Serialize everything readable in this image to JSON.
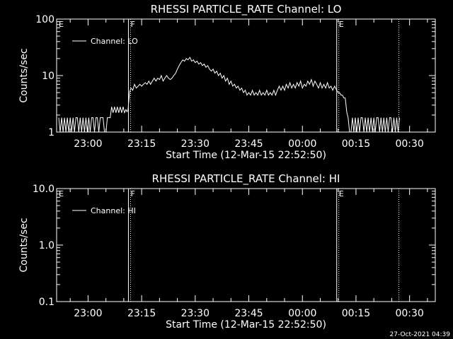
{
  "footer_date": "27-Oct-2021 04:39",
  "chart_data": [
    {
      "type": "line",
      "title": "RHESSI PARTICLE_RATE Channel: LO",
      "xlabel": "Start Time (12-Mar-15 22:52:50)",
      "ylabel": "Counts/sec",
      "yscale": "log",
      "ylim": [
        1,
        100
      ],
      "yticks": [
        1,
        10,
        100
      ],
      "ytick_labels": [
        "1",
        "10",
        "100"
      ],
      "xlim_minutes": [
        -8.8,
        97.2
      ],
      "xticks_minutes": [
        0,
        15,
        30,
        45,
        60,
        75,
        90
      ],
      "xtick_labels": [
        "23:00",
        "23:15",
        "23:30",
        "23:45",
        "00:00",
        "00:15",
        "00:30"
      ],
      "legend": "Channel: LO",
      "legend_position": "top-left",
      "markers": [
        {
          "label": "E",
          "minutes": -8.8,
          "style": "none"
        },
        {
          "label": "F",
          "minutes": 11.3,
          "style": "solid+dotted"
        },
        {
          "label": "E",
          "minutes": 69.6,
          "style": "solid+dotted"
        },
        {
          "label": "",
          "minutes": 87.0,
          "style": "dotted"
        }
      ],
      "series": [
        {
          "name": "Channel: LO",
          "points": [
            [
              -8.2,
              1.8
            ],
            [
              -7.8,
              1
            ],
            [
              -7.4,
              1.8
            ],
            [
              -7.0,
              1
            ],
            [
              -6.6,
              1.8
            ],
            [
              -6.2,
              1
            ],
            [
              -5.8,
              1.8
            ],
            [
              -5.4,
              1
            ],
            [
              -5.0,
              1.8
            ],
            [
              -4.6,
              1
            ],
            [
              -4.2,
              1.8
            ],
            [
              -3.8,
              1
            ],
            [
              -3.4,
              1.8
            ],
            [
              -3.0,
              1.8
            ],
            [
              -2.6,
              1
            ],
            [
              -2.2,
              1.8
            ],
            [
              -1.8,
              1
            ],
            [
              -1.4,
              1.8
            ],
            [
              -1.0,
              1
            ],
            [
              -0.6,
              1.8
            ],
            [
              -0.2,
              1
            ],
            [
              0.2,
              1.8
            ],
            [
              0.6,
              1
            ],
            [
              1.0,
              1.8
            ],
            [
              1.4,
              1.8
            ],
            [
              1.8,
              1
            ],
            [
              2.2,
              1.8
            ],
            [
              2.6,
              1.8
            ],
            [
              3.0,
              1
            ],
            [
              3.4,
              1.8
            ],
            [
              3.8,
              1.8
            ],
            [
              4.2,
              1.8
            ],
            [
              4.6,
              1
            ],
            [
              5.0,
              1
            ],
            [
              5.4,
              1.8
            ],
            [
              5.8,
              1.8
            ],
            [
              6.2,
              1.8
            ],
            [
              6.6,
              2.8
            ],
            [
              7.0,
              2.2
            ],
            [
              7.4,
              2.8
            ],
            [
              7.8,
              2.2
            ],
            [
              8.2,
              2.8
            ],
            [
              8.6,
              2.2
            ],
            [
              9.0,
              2.8
            ],
            [
              9.4,
              2.2
            ],
            [
              9.8,
              2.8
            ],
            [
              10.2,
              2.2
            ],
            [
              10.6,
              2.5
            ],
            [
              10.9,
              2.3
            ],
            [
              11.2,
              2.5
            ],
            [
              11.6,
              5
            ],
            [
              12.0,
              6
            ],
            [
              12.5,
              5.5
            ],
            [
              13.0,
              7
            ],
            [
              13.5,
              6
            ],
            [
              14.0,
              6.5
            ],
            [
              14.5,
              7
            ],
            [
              15.0,
              6.5
            ],
            [
              15.5,
              7
            ],
            [
              16.0,
              7.5
            ],
            [
              16.5,
              7
            ],
            [
              17.0,
              8
            ],
            [
              17.5,
              7
            ],
            [
              18.0,
              8
            ],
            [
              18.5,
              9
            ],
            [
              19.0,
              8
            ],
            [
              19.5,
              9
            ],
            [
              20.0,
              8.5
            ],
            [
              20.5,
              10
            ],
            [
              21.0,
              8
            ],
            [
              21.5,
              9
            ],
            [
              22.0,
              10
            ],
            [
              22.5,
              9
            ],
            [
              23.0,
              8.5
            ],
            [
              23.5,
              9
            ],
            [
              24.0,
              10
            ],
            [
              24.5,
              11
            ],
            [
              25.0,
              13
            ],
            [
              25.5,
              15
            ],
            [
              26.0,
              17
            ],
            [
              26.5,
              19
            ],
            [
              27.0,
              18
            ],
            [
              27.5,
              20
            ],
            [
              28.0,
              19
            ],
            [
              28.5,
              21
            ],
            [
              29.0,
              18
            ],
            [
              29.5,
              19
            ],
            [
              30.0,
              17
            ],
            [
              30.5,
              18
            ],
            [
              31.0,
              16
            ],
            [
              31.5,
              17
            ],
            [
              32.0,
              15
            ],
            [
              32.5,
              16
            ],
            [
              33.0,
              14
            ],
            [
              33.5,
              15
            ],
            [
              34.0,
              13
            ],
            [
              34.5,
              12
            ],
            [
              35.0,
              13
            ],
            [
              35.5,
              11
            ],
            [
              36.0,
              12
            ],
            [
              36.5,
              10
            ],
            [
              37.0,
              11
            ],
            [
              37.5,
              9
            ],
            [
              38.0,
              10
            ],
            [
              38.5,
              8
            ],
            [
              39.0,
              9
            ],
            [
              39.5,
              7
            ],
            [
              40.0,
              8
            ],
            [
              40.5,
              6.5
            ],
            [
              41.0,
              7
            ],
            [
              41.5,
              6
            ],
            [
              42.0,
              6.5
            ],
            [
              42.5,
              5.5
            ],
            [
              43.0,
              6
            ],
            [
              43.5,
              5
            ],
            [
              44.0,
              5.5
            ],
            [
              44.5,
              4.5
            ],
            [
              45.0,
              5
            ],
            [
              45.5,
              4.5
            ],
            [
              46.0,
              5.5
            ],
            [
              46.5,
              4.5
            ],
            [
              47.0,
              5
            ],
            [
              47.5,
              4.5
            ],
            [
              48.0,
              5.5
            ],
            [
              48.5,
              4.5
            ],
            [
              49.0,
              5
            ],
            [
              49.5,
              4.5
            ],
            [
              50.0,
              5.5
            ],
            [
              50.5,
              4.5
            ],
            [
              51.0,
              5
            ],
            [
              51.5,
              4.5
            ],
            [
              52.0,
              5.5
            ],
            [
              52.5,
              4.5
            ],
            [
              53.0,
              5.5
            ],
            [
              53.5,
              6.5
            ],
            [
              54.0,
              5.5
            ],
            [
              54.5,
              6.5
            ],
            [
              55.0,
              5.5
            ],
            [
              55.5,
              7
            ],
            [
              56.0,
              6
            ],
            [
              56.5,
              7.5
            ],
            [
              57.0,
              6
            ],
            [
              57.5,
              7
            ],
            [
              58.0,
              6
            ],
            [
              58.5,
              7.5
            ],
            [
              59.0,
              6.5
            ],
            [
              59.5,
              8
            ],
            [
              60.0,
              6
            ],
            [
              60.5,
              7
            ],
            [
              61.0,
              6.5
            ],
            [
              61.5,
              8
            ],
            [
              62.0,
              7
            ],
            [
              62.5,
              8.5
            ],
            [
              63.0,
              6.5
            ],
            [
              63.5,
              8
            ],
            [
              64.0,
              7
            ],
            [
              64.5,
              6
            ],
            [
              65.0,
              7.5
            ],
            [
              65.5,
              6
            ],
            [
              66.0,
              7
            ],
            [
              66.5,
              6
            ],
            [
              67.0,
              7.5
            ],
            [
              67.5,
              6
            ],
            [
              68.0,
              6.5
            ],
            [
              68.5,
              5.5
            ],
            [
              69.0,
              6.5
            ],
            [
              69.6,
              5.5
            ],
            [
              70.0,
              5
            ],
            [
              70.4,
              5
            ],
            [
              70.8,
              4.5
            ],
            [
              71.2,
              4.5
            ],
            [
              71.6,
              4
            ],
            [
              72.0,
              4
            ],
            [
              72.4,
              2.3
            ],
            [
              72.8,
              1.8
            ],
            [
              73.2,
              1
            ],
            [
              73.6,
              1
            ],
            [
              74.0,
              1.8
            ],
            [
              74.4,
              1
            ],
            [
              74.8,
              1.8
            ],
            [
              75.2,
              1
            ],
            [
              75.6,
              1.8
            ],
            [
              76.0,
              1
            ],
            [
              76.4,
              1.8
            ],
            [
              76.8,
              1.8
            ],
            [
              77.2,
              1
            ],
            [
              77.6,
              1.8
            ],
            [
              78.0,
              1
            ],
            [
              78.4,
              1.8
            ],
            [
              78.8,
              1
            ],
            [
              79.2,
              1.8
            ],
            [
              79.6,
              1
            ],
            [
              80.0,
              1.8
            ],
            [
              80.4,
              1
            ],
            [
              80.8,
              1.8
            ],
            [
              81.2,
              1.8
            ],
            [
              81.6,
              1
            ],
            [
              82.0,
              1.8
            ],
            [
              82.4,
              1
            ],
            [
              82.8,
              1.8
            ],
            [
              83.2,
              1
            ],
            [
              83.6,
              1.8
            ],
            [
              84.0,
              1
            ],
            [
              84.4,
              1.8
            ],
            [
              84.8,
              1.8
            ],
            [
              85.2,
              1
            ],
            [
              85.6,
              1.8
            ],
            [
              86.0,
              1
            ],
            [
              86.4,
              1.8
            ],
            [
              86.8,
              1
            ],
            [
              87.2,
              1.8
            ]
          ]
        }
      ]
    },
    {
      "type": "line",
      "title": "RHESSI PARTICLE_RATE Channel: HI",
      "xlabel": "Start Time (12-Mar-15 22:52:50)",
      "ylabel": "Counts/sec",
      "yscale": "log",
      "ylim": [
        0.1,
        10
      ],
      "yticks": [
        0.1,
        1,
        10
      ],
      "ytick_labels": [
        "0.1",
        "1.0",
        "10.0"
      ],
      "xlim_minutes": [
        -8.8,
        97.2
      ],
      "xticks_minutes": [
        0,
        15,
        30,
        45,
        60,
        75,
        90
      ],
      "xtick_labels": [
        "23:00",
        "23:15",
        "23:30",
        "23:45",
        "00:00",
        "00:15",
        "00:30"
      ],
      "legend": "Channel: HI",
      "legend_position": "top-left",
      "markers": [
        {
          "label": "E",
          "minutes": -8.8,
          "style": "none"
        },
        {
          "label": "F",
          "minutes": 11.3,
          "style": "solid+dotted"
        },
        {
          "label": "E",
          "minutes": 69.6,
          "style": "solid+dotted"
        },
        {
          "label": "",
          "minutes": 87.0,
          "style": "dotted"
        }
      ],
      "series": [
        {
          "name": "Channel: HI",
          "points": []
        }
      ]
    }
  ]
}
